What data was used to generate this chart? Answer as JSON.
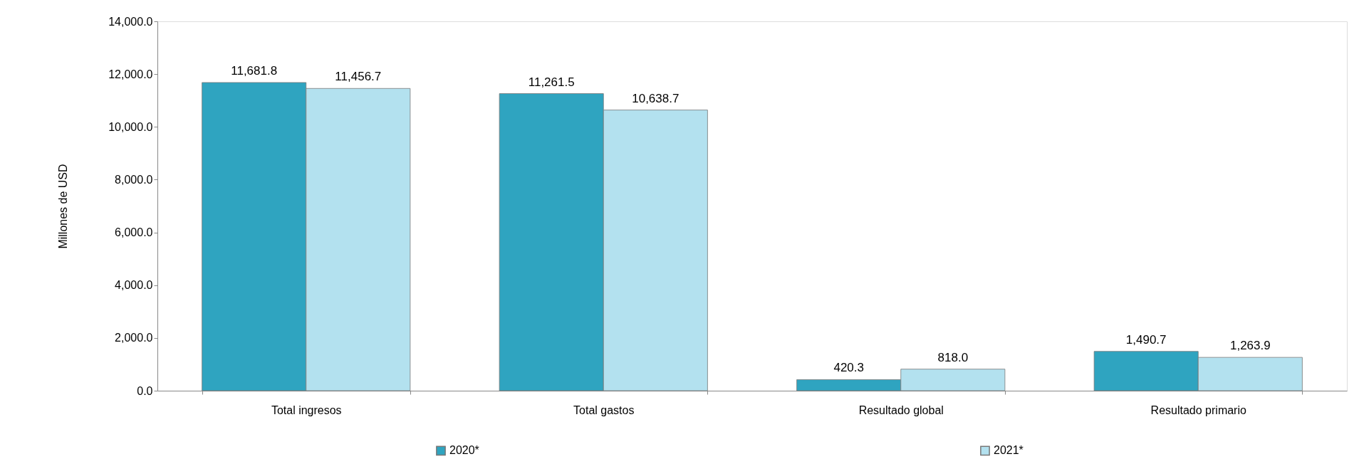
{
  "chart_data": {
    "type": "bar",
    "ylabel": "Millones de USD",
    "categories": [
      "Total ingresos",
      "Total gastos",
      "Resultado global",
      "Resultado primario"
    ],
    "series": [
      {
        "name": "2020*",
        "color": "#2fa4c0",
        "values": [
          11681.8,
          11261.5,
          420.3,
          1490.7
        ],
        "value_labels": [
          "11,681.8",
          "11,261.5",
          "420.3",
          "1,490.7"
        ]
      },
      {
        "name": "2021*",
        "color": "#b3e1ef",
        "values": [
          11456.7,
          10638.7,
          818.0,
          1263.9
        ],
        "value_labels": [
          "11,456.7",
          "10,638.7",
          "818.0",
          "1,263.9"
        ]
      }
    ],
    "ylim": [
      0,
      14000
    ],
    "yticks": [
      {
        "value": 0,
        "label": "0.0"
      },
      {
        "value": 2000,
        "label": "2,000.0"
      },
      {
        "value": 4000,
        "label": "4,000.0"
      },
      {
        "value": 6000,
        "label": "6,000.0"
      },
      {
        "value": 8000,
        "label": "8,000.0"
      },
      {
        "value": 10000,
        "label": "10,000.0"
      },
      {
        "value": 12000,
        "label": "12,000.0"
      },
      {
        "value": 14000,
        "label": "14,000.0"
      }
    ],
    "grid": false,
    "legend": "bottom"
  }
}
